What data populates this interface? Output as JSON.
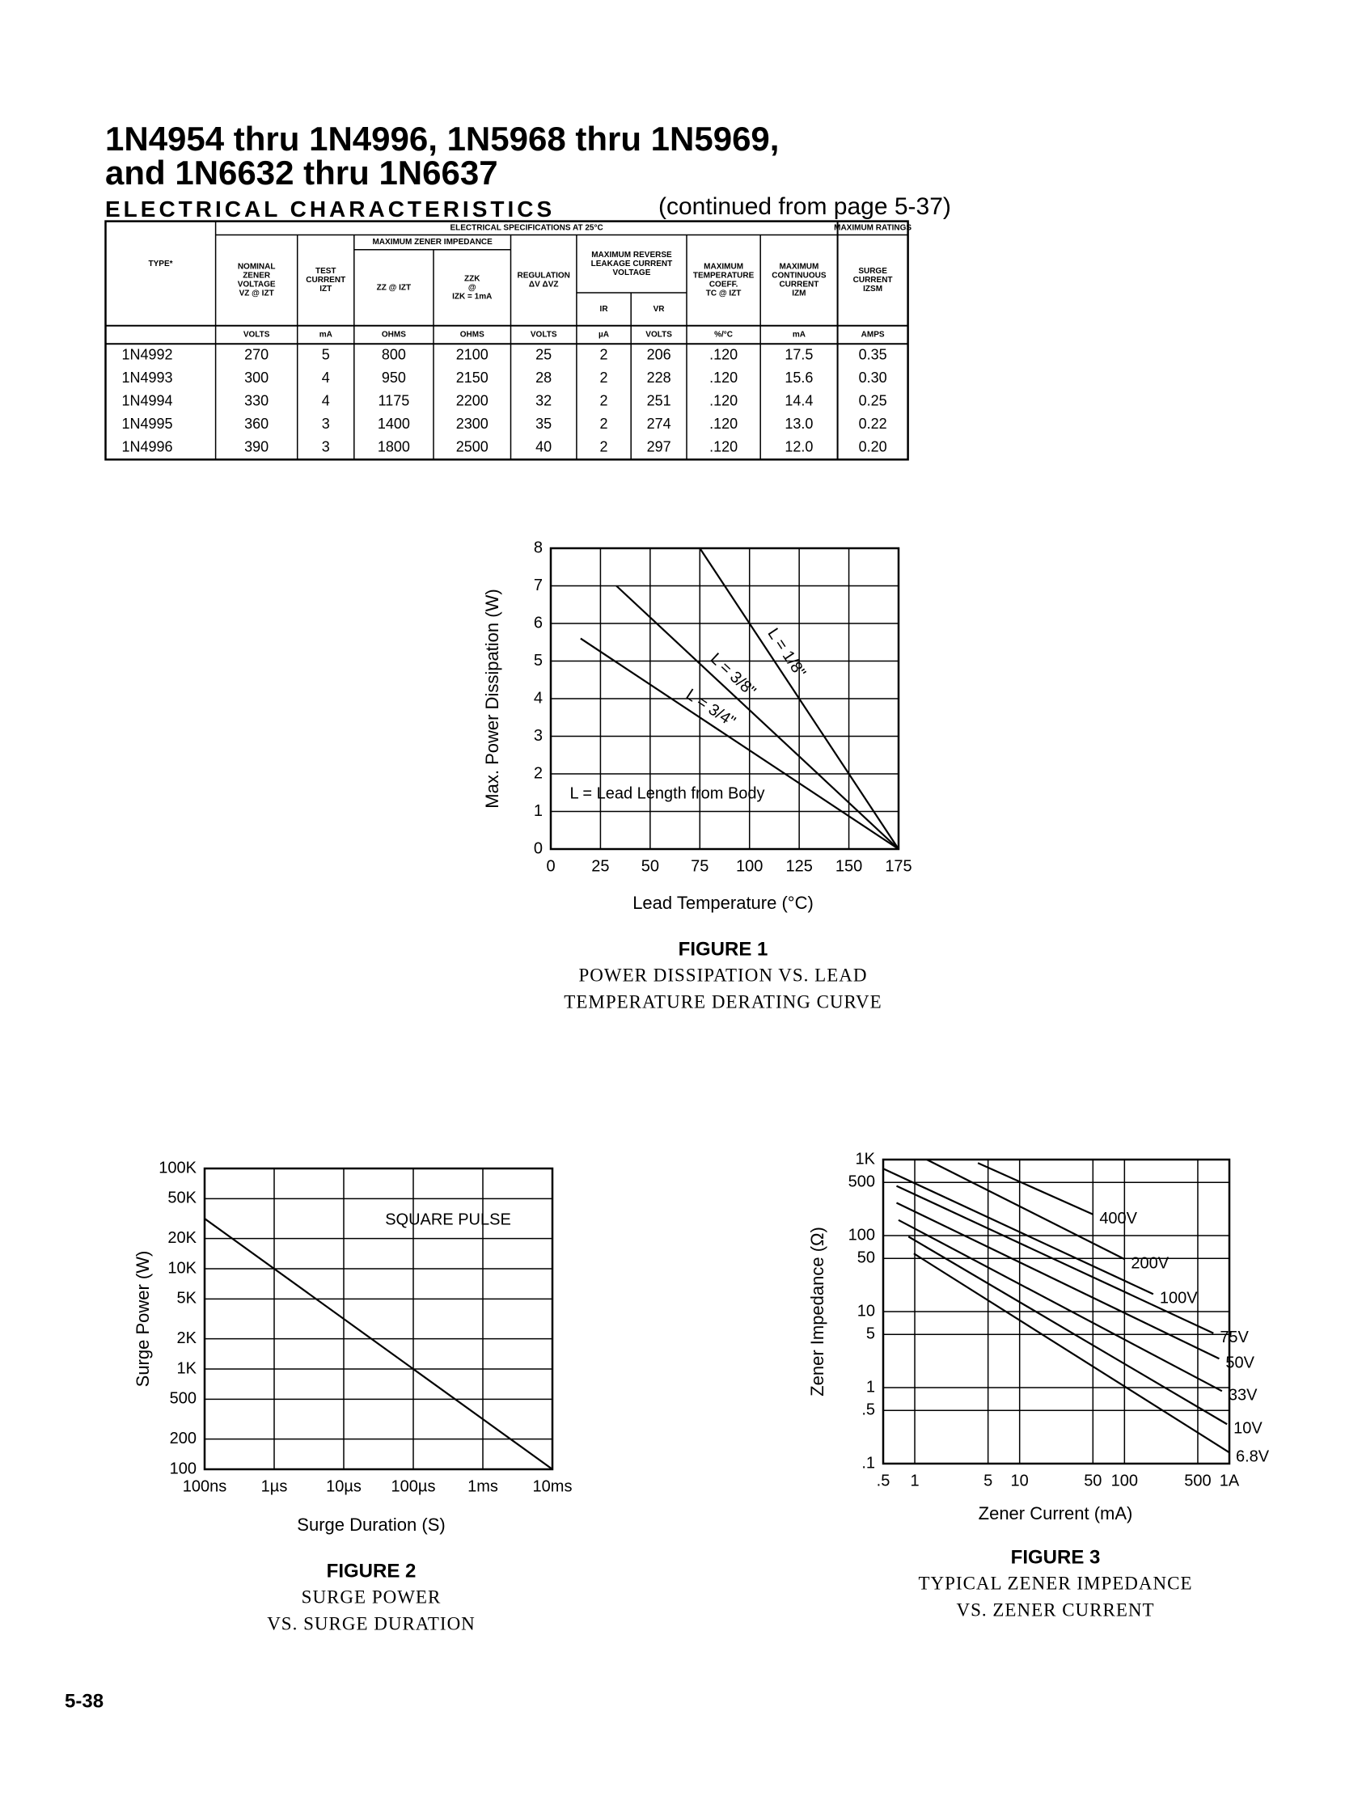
{
  "header": {
    "title": [
      "1N4954 thru 1N4996, 1N5968 thru 1N5969,",
      "and 1N6632 thru 1N6637"
    ],
    "section": "ELECTRICAL CHARACTERISTICS",
    "note": "(continued from page 5-37)"
  },
  "table": {
    "type_header": "TYPE*",
    "group_headers": [
      "ELECTRICAL SPECIFICATIONS AT 25°C",
      "MAXIMUM RATINGS"
    ],
    "sub_group_headers": [
      [
        "MAXIMUM ZENER IMPEDANCE"
      ],
      [
        "MAXIMUM REVERSE",
        "LEAKAGE CURRENT",
        "VOLTAGE"
      ]
    ],
    "column_headers": [
      [
        "NOMINAL",
        "ZENER",
        "VOLTAGE",
        "VZ @ IZT"
      ],
      [
        "TEST",
        "CURRENT",
        "IZT"
      ],
      [
        "ZZ @ IZT"
      ],
      [
        "ZZK",
        "@",
        "IZK = 1mA"
      ],
      [
        "REGULATION",
        "ΔV ΔVZ"
      ],
      [
        "IR"
      ],
      [
        "VR"
      ],
      [
        "MAXIMUM",
        "TEMPERATURE",
        "COEFF.",
        "TC @ IZT"
      ],
      [
        "MAXIMUM",
        "CONTINUOUS",
        "CURRENT",
        "IZM"
      ],
      [
        "SURGE",
        "CURRENT",
        "IZSM"
      ]
    ],
    "units": [
      "VOLTS",
      "mA",
      "OHMS",
      "OHMS",
      "VOLTS",
      "µA",
      "VOLTS",
      "%/°C",
      "mA",
      "AMPS"
    ],
    "rows": [
      [
        "1N4992",
        "270",
        "5",
        "800",
        "2100",
        "25",
        "2",
        "206",
        ".120",
        "17.5",
        "0.35"
      ],
      [
        "1N4993",
        "300",
        "4",
        "950",
        "2150",
        "28",
        "2",
        "228",
        ".120",
        "15.6",
        "0.30"
      ],
      [
        "1N4994",
        "330",
        "4",
        "1175",
        "2200",
        "32",
        "2",
        "251",
        ".120",
        "14.4",
        "0.25"
      ],
      [
        "1N4995",
        "360",
        "3",
        "1400",
        "2300",
        "35",
        "2",
        "274",
        ".120",
        "13.0",
        "0.22"
      ],
      [
        "1N4996",
        "390",
        "3",
        "1800",
        "2500",
        "40",
        "2",
        "297",
        ".120",
        "12.0",
        "0.20"
      ]
    ]
  },
  "chart_data": [
    {
      "type": "line",
      "title": "FIGURE 1",
      "caption": [
        "POWER DISSIPATION VS. LEAD",
        "TEMPERATURE  DERATING CURVE"
      ],
      "x_label": "Lead Temperature (°C)",
      "y_label": "Max. Power Dissipation (W)",
      "xlim": [
        0,
        175
      ],
      "ylim": [
        0,
        8
      ],
      "xticks": [
        0,
        25,
        50,
        75,
        100,
        125,
        150,
        175
      ],
      "yticks": [
        0,
        1,
        2,
        3,
        4,
        5,
        6,
        7,
        8
      ],
      "grid": true,
      "x_log": false,
      "y_log": false,
      "annotations": [
        "L = Lead Length from Body"
      ],
      "series": [
        {
          "name": "L = 1/8\"",
          "color": "#000000",
          "x": [
            75,
            175
          ],
          "values": [
            8,
            0
          ]
        },
        {
          "name": "L = 3/8\"",
          "color": "#000000",
          "x": [
            33,
            175
          ],
          "values": [
            7,
            0
          ]
        },
        {
          "name": "L = 3/4\"",
          "color": "#000000",
          "x": [
            15,
            175
          ],
          "values": [
            5.6,
            0
          ]
        }
      ]
    },
    {
      "type": "line",
      "title": "FIGURE 2",
      "caption": [
        "SURGE POWER",
        "VS. SURGE DURATION"
      ],
      "x_label": "Surge Duration (S)",
      "y_label": "Surge Power (W)",
      "xlim": [
        1e-07,
        0.01
      ],
      "ylim": [
        100,
        100000
      ],
      "xticks": [
        {
          "value": 1e-07,
          "label": "100ns"
        },
        {
          "value": 1e-06,
          "label": "1µs"
        },
        {
          "value": 1e-05,
          "label": "10µs"
        },
        {
          "value": 0.0001,
          "label": "100µs"
        },
        {
          "value": 0.001,
          "label": "1ms"
        },
        {
          "value": 0.01,
          "label": "10ms"
        }
      ],
      "yticks": [
        100,
        200,
        500,
        {
          "value": 1000,
          "label": "1K"
        },
        {
          "value": 2000,
          "label": "2K"
        },
        {
          "value": 5000,
          "label": "5K"
        },
        {
          "value": 10000,
          "label": "10K"
        },
        {
          "value": 20000,
          "label": "20K"
        },
        {
          "value": 50000,
          "label": "50K"
        },
        {
          "value": 100000,
          "label": "100K"
        }
      ],
      "grid": true,
      "x_log": true,
      "y_log": true,
      "annotations": [
        "SQUARE PULSE"
      ],
      "series": [
        {
          "color": "#000000",
          "x": [
            1e-07,
            0.01
          ],
          "values": [
            31600,
            100
          ]
        }
      ]
    },
    {
      "type": "line",
      "title": "FIGURE 3",
      "caption": [
        "TYPICAL ZENER IMPEDANCE",
        "VS. ZENER CURRENT"
      ],
      "x_label": "Zener Current (mA)",
      "y_label": "Zener Impedance (Ω)",
      "xlim": [
        0.5,
        1000
      ],
      "ylim": [
        0.1,
        1000
      ],
      "xticks": [
        {
          "value": 0.5,
          "label": ".5"
        },
        1,
        5,
        10,
        50,
        100,
        500,
        {
          "value": 1000,
          "label": "1A"
        }
      ],
      "yticks": [
        {
          "value": 0.1,
          "label": ".1"
        },
        {
          "value": 0.5,
          "label": ".5"
        },
        1,
        5,
        10,
        50,
        100,
        500,
        {
          "value": 1000,
          "label": "1K"
        }
      ],
      "grid": true,
      "x_log": true,
      "y_log": true,
      "annotations": [],
      "series": [
        {
          "name": "400V",
          "color": "#000000",
          "x": [
            4,
            50
          ],
          "values": [
            900,
            190
          ]
        },
        {
          "name": "200V",
          "color": "#000000",
          "x": [
            1.3,
            100
          ],
          "values": [
            1000,
            49
          ]
        },
        {
          "name": "100V",
          "color": "#000000",
          "x": [
            0.5,
            188
          ],
          "values": [
            760,
            17
          ]
        },
        {
          "name": "75V",
          "color": "#000000",
          "x": [
            0.67,
            705
          ],
          "values": [
            450,
            5.2
          ]
        },
        {
          "name": "50V",
          "color": "#000000",
          "x": [
            0.67,
            800
          ],
          "values": [
            270,
            2.4
          ]
        },
        {
          "name": "33V",
          "color": "#000000",
          "x": [
            0.7,
            850
          ],
          "values": [
            160,
            0.9
          ]
        },
        {
          "name": "10V",
          "color": "#000000",
          "x": [
            0.87,
            950
          ],
          "values": [
            97,
            0.33
          ]
        },
        {
          "name": "6.8V",
          "color": "#000000",
          "x": [
            0.98,
            1000
          ],
          "values": [
            58,
            0.14
          ]
        }
      ]
    }
  ],
  "page_number": "5-38"
}
